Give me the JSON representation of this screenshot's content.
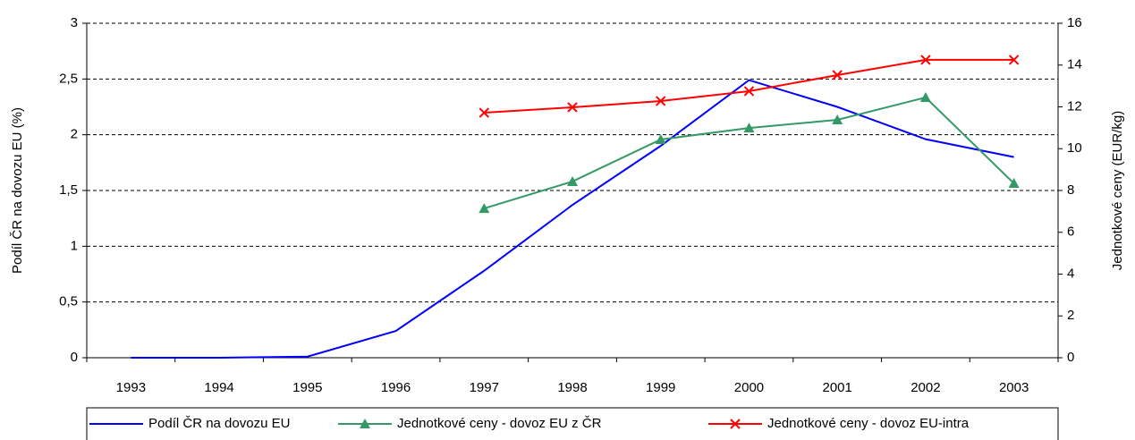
{
  "chart_data": {
    "type": "line",
    "categories": [
      "1993",
      "1994",
      "1995",
      "1996",
      "1997",
      "1998",
      "1999",
      "2000",
      "2001",
      "2002",
      "2003"
    ],
    "series": [
      {
        "name": "Podíl ČR na dovozu EU",
        "color": "#0000ff",
        "marker": "none",
        "values": [
          0,
          0,
          0.01,
          0.24,
          0.78,
          1.37,
          1.9,
          2.49,
          2.25,
          1.96,
          1.8
        ]
      },
      {
        "name": "Jednotkové ceny - dovoz EU z ČR",
        "color": "#339966",
        "marker": "triangle",
        "axis": "y2",
        "values": [
          null,
          null,
          null,
          null,
          7.14,
          8.43,
          10.44,
          10.99,
          11.38,
          12.45,
          8.34
        ]
      },
      {
        "name": "Jednotkové ceny - dovoz EU-intra",
        "color": "#ff0000",
        "marker": "x",
        "axis": "y2",
        "values": [
          null,
          null,
          null,
          null,
          11.72,
          11.98,
          12.28,
          12.75,
          13.52,
          14.25,
          14.25
        ]
      }
    ],
    "ylabel": "Podíl ČR na dovozu EU (%)",
    "y2label": "Jednotkové ceny (EUR/kg)",
    "ylim": [
      0,
      3
    ],
    "yticks": [
      0,
      {
        "value": 0.5,
        "label": "0,5"
      },
      1,
      {
        "value": 1.5,
        "label": "1,5"
      },
      2,
      {
        "value": 2.5,
        "label": "2,5"
      },
      3
    ],
    "y2lim": [
      0,
      16
    ],
    "y2ticks": [
      0,
      2,
      4,
      6,
      8,
      10,
      12,
      14,
      16
    ],
    "grid": true,
    "legend": "bottom"
  }
}
